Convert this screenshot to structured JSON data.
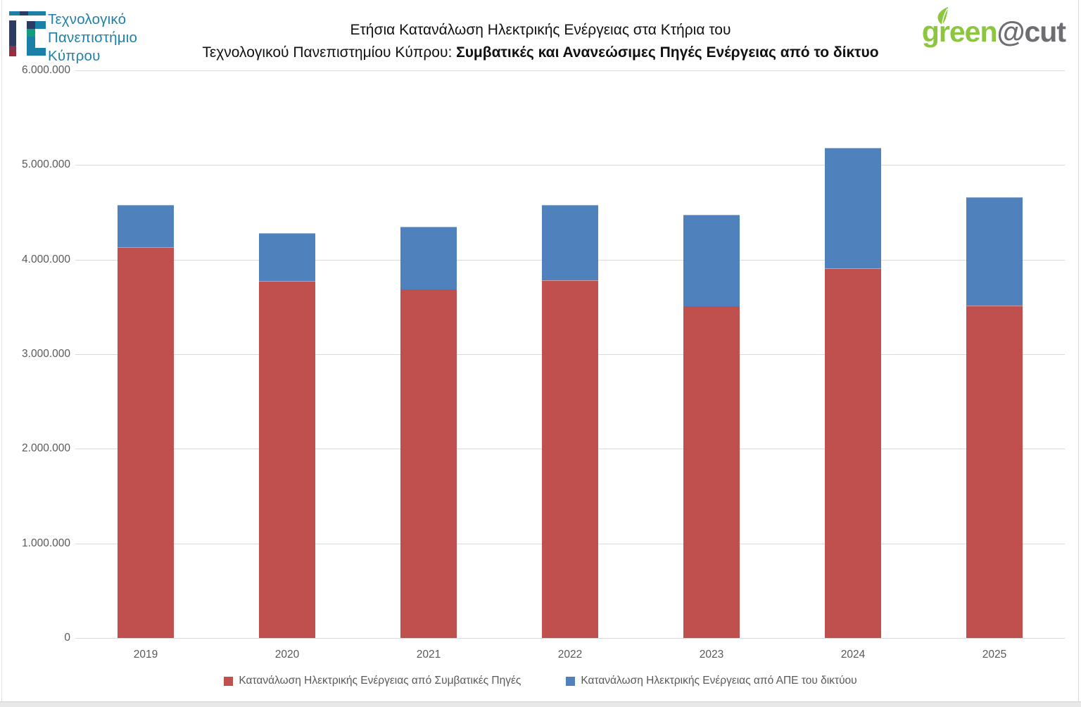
{
  "header": {
    "university_name": {
      "line1": "Τεχνολογικό",
      "line2": "Πανεπιστήμιο",
      "line3": "Κύπρου"
    },
    "title_line1": "Ετήσια Κατανάλωση Ηλεκτρικής Ενέργειας στα Κτήρια του",
    "title_line2_regular": "Τεχνολογικού Πανεπιστημίου Κύπρου: ",
    "title_line2_bold": "Συμβατικές και Ανανεώσιμες Πηγές Ενέργειας από το δίκτυο",
    "brand": {
      "green_part": "green",
      "grey_part": "@cut",
      "green_color": "#8cc63e",
      "grey_color": "#6d6e71"
    }
  },
  "chart_data": {
    "type": "bar",
    "stacked": true,
    "title": "Ετήσια Κατανάλωση Ηλεκτρικής Ενέργειας στα Κτήρια του Τεχνολογικού Πανεπιστημίου Κύπρου: Συμβατικές και Ανανεώσιμες Πηγές Ενέργειας από το δίκτυο",
    "categories": [
      "2019",
      "2020",
      "2021",
      "2022",
      "2023",
      "2024",
      "2025"
    ],
    "series": [
      {
        "name": "Κατανάλωση Ηλεκτρικής Ενέργειας από Συμβατικές Πηγές",
        "color": "#c0504d",
        "values": [
          4130000,
          3775000,
          3690000,
          3785000,
          3510000,
          3905000,
          3510000
        ]
      },
      {
        "name": "Κατανάλωση Ηλεκτρικής Ενέργειας από ΑΠΕ του δικτύου",
        "color": "#4f81bd",
        "values": [
          450000,
          505000,
          660000,
          795000,
          965000,
          1275000,
          1150000
        ]
      }
    ],
    "totals": [
      4580000,
      4280000,
      4350000,
      4580000,
      4475000,
      5180000,
      4660000
    ],
    "xlabel": "",
    "ylabel": "",
    "ylim": [
      0,
      6000000
    ],
    "ytick_step": 1000000,
    "ytick_labels": [
      "0",
      "1.000.000",
      "2.000.000",
      "3.000.000",
      "4.000.000",
      "5.000.000",
      "6.000.000"
    ],
    "grid": true,
    "gridline_color": "#d9d9d9",
    "legend_position": "bottom"
  }
}
